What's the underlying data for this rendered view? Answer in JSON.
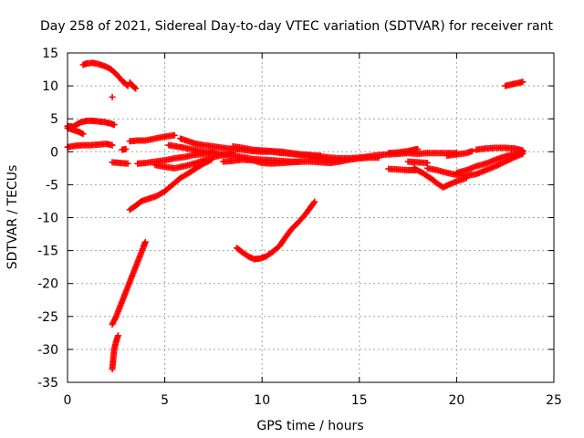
{
  "chart_data": {
    "type": "scatter",
    "title": "Day 258 of 2021, Sidereal Day-to-day VTEC variation (SDTVAR) for receiver rant",
    "xlabel": "GPS time / hours",
    "ylabel": "SDTVAR / TECUs",
    "xlim": [
      0,
      25
    ],
    "ylim": [
      -35,
      15
    ],
    "xticks": [
      0,
      5,
      10,
      15,
      20,
      25
    ],
    "yticks": [
      15,
      10,
      5,
      0,
      -5,
      -10,
      -15,
      -20,
      -25,
      -30,
      -35
    ],
    "grid": true,
    "legend": "none",
    "marker": "+",
    "color": "#ff0000",
    "series": [
      {
        "points": [
          [
            0.8,
            13.2
          ],
          [
            1.0,
            13.4
          ],
          [
            1.3,
            13.5
          ],
          [
            1.6,
            13.3
          ],
          [
            1.9,
            13.0
          ],
          [
            2.2,
            12.6
          ],
          [
            2.5,
            11.8
          ],
          [
            2.8,
            10.8
          ],
          [
            3.1,
            10.0
          ]
        ]
      },
      {
        "points": [
          [
            3.2,
            10.5
          ],
          [
            3.35,
            10.0
          ],
          [
            3.5,
            9.6
          ]
        ]
      },
      {
        "points": [
          [
            2.3,
            8.3
          ]
        ]
      },
      {
        "points": [
          [
            0.0,
            3.9
          ],
          [
            0.3,
            3.8
          ],
          [
            0.5,
            4.2
          ],
          [
            0.7,
            4.5
          ],
          [
            1.0,
            4.7
          ],
          [
            1.3,
            4.7
          ],
          [
            1.6,
            4.6
          ],
          [
            1.9,
            4.5
          ],
          [
            2.2,
            4.3
          ],
          [
            2.4,
            4.1
          ]
        ]
      },
      {
        "points": [
          [
            0.0,
            3.6
          ],
          [
            0.3,
            3.3
          ],
          [
            0.6,
            3.0
          ],
          [
            0.8,
            2.7
          ]
        ]
      },
      {
        "points": [
          [
            0.0,
            0.7
          ],
          [
            0.4,
            0.9
          ],
          [
            0.8,
            1.0
          ],
          [
            1.2,
            1.0
          ],
          [
            1.6,
            1.1
          ],
          [
            2.0,
            1.2
          ],
          [
            2.3,
            1.0
          ]
        ]
      },
      {
        "points": [
          [
            2.3,
            -1.6
          ],
          [
            2.7,
            -1.7
          ],
          [
            3.1,
            -1.8
          ]
        ]
      },
      {
        "points": [
          [
            2.8,
            0.3
          ],
          [
            3.0,
            0.4
          ]
        ]
      },
      {
        "points": [
          [
            3.2,
            1.6
          ],
          [
            3.6,
            1.7
          ],
          [
            4.0,
            1.7
          ],
          [
            4.5,
            2.0
          ],
          [
            5.0,
            2.3
          ],
          [
            5.5,
            2.5
          ]
        ]
      },
      {
        "points": [
          [
            3.6,
            -1.8
          ],
          [
            4.0,
            -1.7
          ],
          [
            4.5,
            -1.5
          ],
          [
            5.0,
            -1.3
          ],
          [
            5.5,
            -1.0
          ],
          [
            6.0,
            -0.8
          ],
          [
            6.5,
            -0.5
          ],
          [
            7.0,
            -0.3
          ],
          [
            7.5,
            0.0
          ]
        ]
      },
      {
        "points": [
          [
            4.5,
            -2.0
          ],
          [
            5.0,
            -2.3
          ],
          [
            5.5,
            -2.5
          ],
          [
            6.0,
            -2.2
          ],
          [
            6.5,
            -1.8
          ],
          [
            7.0,
            -1.3
          ],
          [
            7.5,
            -0.8
          ],
          [
            8.0,
            -0.5
          ],
          [
            8.5,
            -0.2
          ]
        ]
      },
      {
        "points": [
          [
            5.2,
            1.0
          ],
          [
            5.6,
            0.8
          ],
          [
            6.0,
            0.6
          ],
          [
            6.5,
            0.3
          ],
          [
            7.0,
            0.0
          ],
          [
            7.5,
            -0.2
          ],
          [
            8.0,
            -0.4
          ],
          [
            8.5,
            -0.6
          ],
          [
            9.0,
            -0.8
          ],
          [
            9.5,
            -1.1
          ],
          [
            10.0,
            -1.2
          ],
          [
            10.5,
            -1.3
          ],
          [
            11.0,
            -1.4
          ],
          [
            11.5,
            -1.5
          ],
          [
            12.0,
            -1.5
          ]
        ]
      },
      {
        "points": [
          [
            5.8,
            2.0
          ],
          [
            6.2,
            1.6
          ],
          [
            6.6,
            1.2
          ],
          [
            7.0,
            1.0
          ],
          [
            7.5,
            0.8
          ],
          [
            8.0,
            0.6
          ],
          [
            8.5,
            0.4
          ],
          [
            9.0,
            0.3
          ],
          [
            9.5,
            0.1
          ],
          [
            10.0,
            0.0
          ],
          [
            10.5,
            0.0
          ],
          [
            11.0,
            -0.2
          ],
          [
            11.5,
            -0.3
          ],
          [
            12.0,
            -0.5
          ],
          [
            12.5,
            -0.6
          ],
          [
            13.0,
            -0.6
          ]
        ]
      },
      {
        "points": [
          [
            8.5,
            0.8
          ],
          [
            9.0,
            0.6
          ],
          [
            9.5,
            0.3
          ],
          [
            10.0,
            0.2
          ],
          [
            10.5,
            0.1
          ],
          [
            11.0,
            0.0
          ],
          [
            11.5,
            -0.2
          ],
          [
            12.0,
            -0.4
          ],
          [
            12.5,
            -0.5
          ],
          [
            13.0,
            -0.7
          ],
          [
            13.5,
            -0.9
          ],
          [
            14.0,
            -1.0
          ],
          [
            14.5,
            -1.0
          ],
          [
            15.0,
            -0.9
          ],
          [
            15.5,
            -0.7
          ],
          [
            16.0,
            -0.5
          ],
          [
            16.5,
            -0.4
          ],
          [
            17.0,
            -0.3
          ],
          [
            17.5,
            -0.2
          ],
          [
            18.0,
            -0.3
          ],
          [
            18.5,
            -0.2
          ],
          [
            19.0,
            -0.2
          ],
          [
            19.5,
            -0.2
          ],
          [
            20.0,
            -0.2
          ]
        ]
      },
      {
        "points": [
          [
            8.0,
            -1.5
          ],
          [
            8.5,
            -1.4
          ],
          [
            9.0,
            -1.2
          ],
          [
            9.5,
            -1.3
          ],
          [
            10.0,
            -1.7
          ],
          [
            10.5,
            -1.8
          ],
          [
            11.0,
            -1.7
          ],
          [
            11.5,
            -1.6
          ],
          [
            12.0,
            -1.5
          ],
          [
            12.5,
            -1.5
          ],
          [
            13.0,
            -1.6
          ],
          [
            13.5,
            -1.7
          ],
          [
            14.0,
            -1.5
          ],
          [
            14.5,
            -1.2
          ],
          [
            15.0,
            -1.0
          ],
          [
            15.5,
            -0.9
          ],
          [
            16.0,
            -0.9
          ]
        ]
      },
      {
        "points": [
          [
            12.5,
            -0.8
          ],
          [
            13.0,
            -1.0
          ],
          [
            13.5,
            -1.3
          ],
          [
            14.0,
            -1.4
          ]
        ]
      },
      {
        "points": [
          [
            16.5,
            -0.2
          ],
          [
            17.0,
            -0.1
          ],
          [
            17.5,
            0.1
          ],
          [
            17.8,
            0.3
          ],
          [
            18.0,
            0.4
          ]
        ]
      },
      {
        "points": [
          [
            16.5,
            -2.6
          ],
          [
            17.0,
            -2.7
          ],
          [
            17.5,
            -2.8
          ],
          [
            17.9,
            -2.8
          ]
        ]
      },
      {
        "points": [
          [
            17.5,
            -1.5
          ],
          [
            18.0,
            -1.6
          ],
          [
            18.5,
            -1.7
          ]
        ]
      },
      {
        "points": [
          [
            17.8,
            -2.5
          ],
          [
            18.3,
            -3.3
          ],
          [
            18.7,
            -4.1
          ],
          [
            19.0,
            -4.8
          ],
          [
            19.3,
            -5.4
          ],
          [
            19.6,
            -5.0
          ],
          [
            20.0,
            -4.5
          ],
          [
            20.5,
            -4.0
          ]
        ]
      },
      {
        "points": [
          [
            18.5,
            -2.5
          ],
          [
            19.0,
            -2.8
          ],
          [
            19.5,
            -3.2
          ],
          [
            20.0,
            -3.5
          ],
          [
            20.5,
            -3.6
          ],
          [
            21.0,
            -3.4
          ],
          [
            21.5,
            -2.8
          ],
          [
            22.0,
            -2.2
          ],
          [
            22.5,
            -1.5
          ],
          [
            23.0,
            -0.8
          ],
          [
            23.4,
            -0.3
          ]
        ]
      },
      {
        "points": [
          [
            19.5,
            -0.6
          ],
          [
            20.0,
            -0.4
          ],
          [
            20.5,
            -0.2
          ],
          [
            20.8,
            0.1
          ]
        ]
      },
      {
        "points": [
          [
            20.0,
            -3.2
          ],
          [
            20.5,
            -2.8
          ],
          [
            21.0,
            -2.2
          ],
          [
            21.5,
            -1.8
          ],
          [
            22.0,
            -1.2
          ],
          [
            22.5,
            -0.7
          ],
          [
            23.0,
            -0.3
          ],
          [
            23.4,
            0.0
          ]
        ]
      },
      {
        "points": [
          [
            21.0,
            0.3
          ],
          [
            21.5,
            0.5
          ],
          [
            22.0,
            0.6
          ],
          [
            22.5,
            0.6
          ],
          [
            23.0,
            0.5
          ],
          [
            23.4,
            0.2
          ]
        ]
      },
      {
        "points": [
          [
            22.5,
            10.0
          ],
          [
            22.8,
            10.2
          ],
          [
            23.1,
            10.4
          ],
          [
            23.4,
            10.6
          ]
        ]
      },
      {
        "points": [
          [
            3.2,
            -8.8
          ],
          [
            3.5,
            -8.2
          ],
          [
            3.8,
            -7.5
          ],
          [
            4.2,
            -7.1
          ],
          [
            4.6,
            -6.7
          ],
          [
            5.0,
            -6.0
          ],
          [
            5.4,
            -5.0
          ],
          [
            5.8,
            -4.0
          ],
          [
            6.2,
            -3.3
          ],
          [
            6.6,
            -2.5
          ],
          [
            7.0,
            -1.8
          ],
          [
            7.4,
            -1.2
          ]
        ]
      },
      {
        "points": [
          [
            2.3,
            -26.2
          ],
          [
            2.5,
            -25.0
          ],
          [
            2.7,
            -23.5
          ],
          [
            2.9,
            -22.0
          ],
          [
            3.1,
            -20.5
          ],
          [
            3.3,
            -19.0
          ],
          [
            3.5,
            -17.5
          ],
          [
            3.7,
            -16.0
          ],
          [
            3.9,
            -14.5
          ],
          [
            4.0,
            -13.7
          ]
        ]
      },
      {
        "points": [
          [
            2.3,
            -33.0
          ],
          [
            2.35,
            -31.5
          ],
          [
            2.4,
            -30.0
          ],
          [
            2.5,
            -28.8
          ],
          [
            2.6,
            -27.9
          ]
        ]
      },
      {
        "points": [
          [
            8.7,
            -14.6
          ],
          [
            9.0,
            -15.3
          ],
          [
            9.3,
            -15.9
          ],
          [
            9.6,
            -16.3
          ],
          [
            9.9,
            -16.2
          ],
          [
            10.2,
            -15.9
          ],
          [
            10.5,
            -15.3
          ],
          [
            10.9,
            -14.3
          ],
          [
            11.2,
            -13.0
          ],
          [
            11.5,
            -11.8
          ],
          [
            11.9,
            -10.6
          ],
          [
            12.2,
            -9.6
          ],
          [
            12.5,
            -8.4
          ],
          [
            12.7,
            -7.6
          ]
        ]
      }
    ]
  }
}
